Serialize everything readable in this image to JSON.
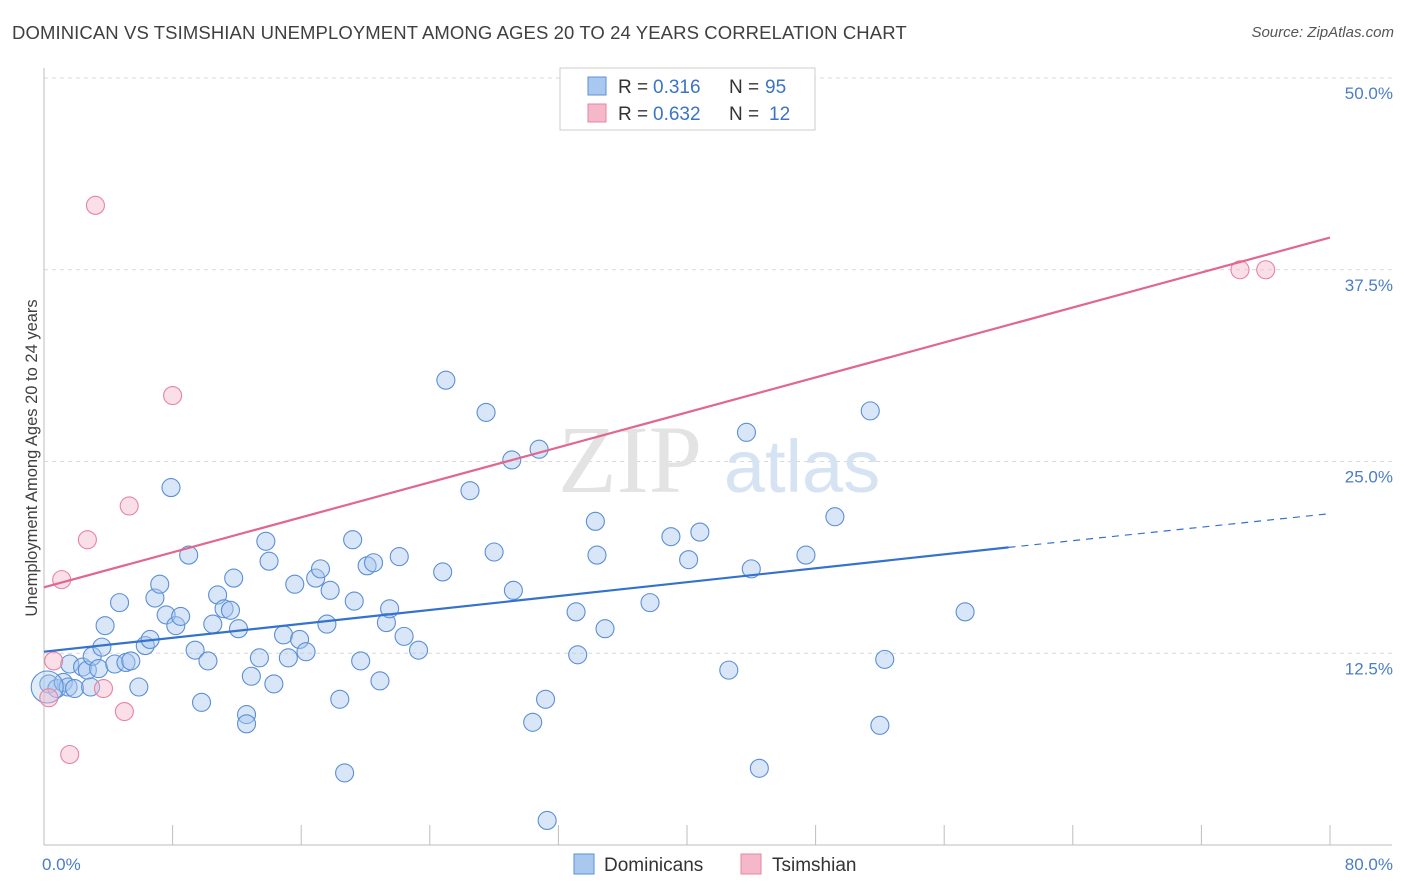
{
  "title": "DOMINICAN VS TSIMSHIAN UNEMPLOYMENT AMONG AGES 20 TO 24 YEARS CORRELATION CHART",
  "source": "Source: ZipAtlas.com",
  "watermark": {
    "zip": "ZIP",
    "atlas": "atlas"
  },
  "colors": {
    "dominican_fill": "#a9c8ef",
    "dominican_stroke": "#5b8fd6",
    "dominican_line": "#3472cc",
    "tsimshian_fill": "#f5b8cb",
    "tsimshian_stroke": "#e6849f",
    "tsimshian_line": "#e0678f",
    "grid": "#d9d9d9",
    "tick_text": "#4a7cc9"
  },
  "legend": {
    "rows": [
      {
        "r_label": "R =",
        "r_value": "0.316",
        "n_label": "N =",
        "n_value": "95"
      },
      {
        "r_label": "R =",
        "r_value": "0.632",
        "n_label": "N =",
        "n_value": "12"
      }
    ]
  },
  "bottom_legend": [
    "Dominicans",
    "Tsimshian"
  ],
  "chart_data": {
    "type": "scatter",
    "title": "DOMINICAN VS TSIMSHIAN UNEMPLOYMENT AMONG AGES 20 TO 24 YEARS CORRELATION CHART",
    "xlabel": "",
    "ylabel": "Unemployment Among Ages 20 to 24 years",
    "xlim": [
      0,
      80
    ],
    "ylim": [
      0,
      50
    ],
    "x_tick_labels": [
      "0.0%",
      "80.0%"
    ],
    "y_tick_labels": [
      "12.5%",
      "25.0%",
      "37.5%",
      "50.0%"
    ],
    "y_tick_values": [
      12.5,
      25,
      37.5,
      50
    ],
    "grid": true,
    "legend_placement": "top-center",
    "series": [
      {
        "name": "Dominicans",
        "R": 0.316,
        "N": 95,
        "trend": {
          "x0": 0,
          "y0": 12.6,
          "x1": 60,
          "y1": 19.4,
          "dashed_to_x": 80,
          "dashed_to_y": 21.6
        },
        "points": [
          [
            0.3,
            10.5
          ],
          [
            0.8,
            10.2
          ],
          [
            1.2,
            10.6
          ],
          [
            1.5,
            10.3
          ],
          [
            1.6,
            11.8
          ],
          [
            1.9,
            10.2
          ],
          [
            2.4,
            11.6
          ],
          [
            2.7,
            11.4
          ],
          [
            2.9,
            10.3
          ],
          [
            3.0,
            12.3
          ],
          [
            3.4,
            11.5
          ],
          [
            3.6,
            12.9
          ],
          [
            3.8,
            14.3
          ],
          [
            4.4,
            11.8
          ],
          [
            4.7,
            15.8
          ],
          [
            5.1,
            11.9
          ],
          [
            5.4,
            12.0
          ],
          [
            5.9,
            10.3
          ],
          [
            6.3,
            13.0
          ],
          [
            6.6,
            13.4
          ],
          [
            6.9,
            16.1
          ],
          [
            7.2,
            17.0
          ],
          [
            7.6,
            15.0
          ],
          [
            7.9,
            23.3
          ],
          [
            8.2,
            14.3
          ],
          [
            8.5,
            14.9
          ],
          [
            9.0,
            18.9
          ],
          [
            9.4,
            12.7
          ],
          [
            9.8,
            9.3
          ],
          [
            10.2,
            12.0
          ],
          [
            10.5,
            14.4
          ],
          [
            10.8,
            16.3
          ],
          [
            11.2,
            15.4
          ],
          [
            11.6,
            15.3
          ],
          [
            11.8,
            17.4
          ],
          [
            12.1,
            14.1
          ],
          [
            12.6,
            8.5
          ],
          [
            12.6,
            7.9
          ],
          [
            12.9,
            11.0
          ],
          [
            13.4,
            12.2
          ],
          [
            13.8,
            19.8
          ],
          [
            14.0,
            18.5
          ],
          [
            14.3,
            10.5
          ],
          [
            14.9,
            13.7
          ],
          [
            15.2,
            12.2
          ],
          [
            15.6,
            17.0
          ],
          [
            15.9,
            13.4
          ],
          [
            16.3,
            12.6
          ],
          [
            16.9,
            17.4
          ],
          [
            17.2,
            18.0
          ],
          [
            17.6,
            14.4
          ],
          [
            17.8,
            16.6
          ],
          [
            18.4,
            9.5
          ],
          [
            18.7,
            4.7
          ],
          [
            19.2,
            19.9
          ],
          [
            19.3,
            15.9
          ],
          [
            19.7,
            12.0
          ],
          [
            20.1,
            18.2
          ],
          [
            20.5,
            18.4
          ],
          [
            20.9,
            10.7
          ],
          [
            21.3,
            14.5
          ],
          [
            21.5,
            15.4
          ],
          [
            22.1,
            18.8
          ],
          [
            22.4,
            13.6
          ],
          [
            23.3,
            12.7
          ],
          [
            24.8,
            17.8
          ],
          [
            25.0,
            30.3
          ],
          [
            26.5,
            23.1
          ],
          [
            27.5,
            28.2
          ],
          [
            28.0,
            19.1
          ],
          [
            29.1,
            25.1
          ],
          [
            29.2,
            16.6
          ],
          [
            30.4,
            8.0
          ],
          [
            30.8,
            25.8
          ],
          [
            31.2,
            9.5
          ],
          [
            31.3,
            1.6
          ],
          [
            33.1,
            15.2
          ],
          [
            33.2,
            12.4
          ],
          [
            34.3,
            21.1
          ],
          [
            34.4,
            18.9
          ],
          [
            34.9,
            14.1
          ],
          [
            37.7,
            15.8
          ],
          [
            39.0,
            20.1
          ],
          [
            40.1,
            18.6
          ],
          [
            40.8,
            20.4
          ],
          [
            42.6,
            11.4
          ],
          [
            43.7,
            26.9
          ],
          [
            44.0,
            18.0
          ],
          [
            44.5,
            5.0
          ],
          [
            47.4,
            18.9
          ],
          [
            49.2,
            21.4
          ],
          [
            51.4,
            28.3
          ],
          [
            52.0,
            7.8
          ],
          [
            52.3,
            12.1
          ],
          [
            57.3,
            15.2
          ]
        ]
      },
      {
        "name": "Tsimshian",
        "R": 0.632,
        "N": 12,
        "trend": {
          "x0": 0,
          "y0": 16.8,
          "x1": 80,
          "y1": 39.6
        },
        "points": [
          [
            0.3,
            9.6
          ],
          [
            0.6,
            12.0
          ],
          [
            1.1,
            17.3
          ],
          [
            1.6,
            5.9
          ],
          [
            2.7,
            19.9
          ],
          [
            3.2,
            41.7
          ],
          [
            3.7,
            10.2
          ],
          [
            5.0,
            8.7
          ],
          [
            5.3,
            22.1
          ],
          [
            8.0,
            29.3
          ],
          [
            74.4,
            37.5
          ],
          [
            76.0,
            37.5
          ]
        ]
      }
    ]
  }
}
